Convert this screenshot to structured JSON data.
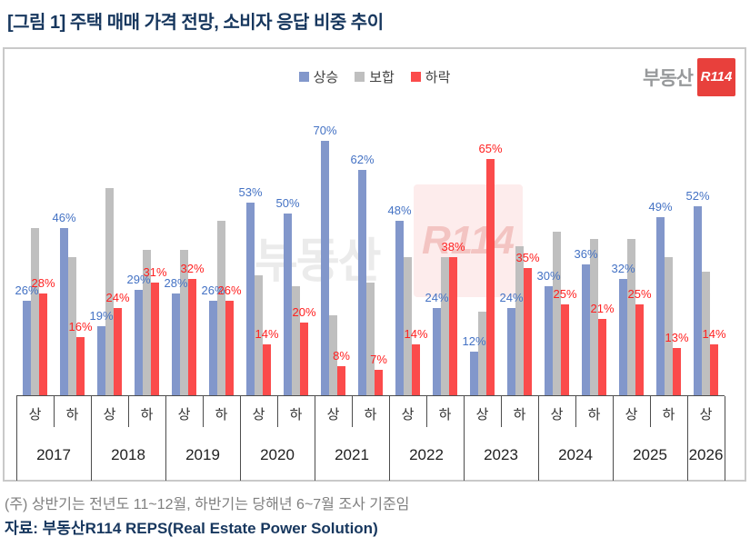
{
  "page": {
    "title": "[그림 1] 주택 매매 가격 전망, 소비자 응답 비중 추이",
    "note": "(주) 상반기는 전년도 11~12월, 하반기는 당해년 6~7월 조사 기준임",
    "source": "자료: 부동산R114 REPS(Real Estate Power Solution)"
  },
  "logo": {
    "prefix": "부동산",
    "mark": "R114"
  },
  "watermark": {
    "prefix": "부동산",
    "mark": "R114"
  },
  "colors": {
    "rise_bar": "#8297cb",
    "rise_label": "#4472c4",
    "flat_bar": "#bfbfbf",
    "fall_bar": "#fb4b4b",
    "fall_label": "#ff1f1f",
    "title_navy": "#17375e",
    "note_gray": "#7f7f7f",
    "axis_line": "#4d4d4d",
    "panel_border": "#c9c9c9",
    "logo_gray": "#97999b",
    "logo_red": "#e8403c"
  },
  "legend": {
    "items": [
      {
        "label": "상승"
      },
      {
        "label": "보합"
      },
      {
        "label": "하락"
      }
    ]
  },
  "chart_data": {
    "type": "bar",
    "title": "주택 매매 가격 전망, 소비자 응답 비중 추이",
    "unit": "%",
    "ylim": [
      0,
      75
    ],
    "grid": false,
    "legend_position": "top-center",
    "categories": [
      "2017 상",
      "2017 하",
      "2018 상",
      "2018 하",
      "2019 상",
      "2019 하",
      "2020 상",
      "2020 하",
      "2021 상",
      "2021 하",
      "2022 상",
      "2022 하",
      "2023 상",
      "2023 하",
      "2024 상",
      "2024 하",
      "2025 상",
      "2025 하",
      "2026 상"
    ],
    "x_axis": {
      "halves": [
        "상",
        "하",
        "상",
        "하",
        "상",
        "하",
        "상",
        "하",
        "상",
        "하",
        "상",
        "하",
        "상",
        "하",
        "상",
        "하",
        "상",
        "하",
        "상"
      ],
      "years": [
        {
          "label": "2017",
          "span": 2
        },
        {
          "label": "2018",
          "span": 2
        },
        {
          "label": "2019",
          "span": 2
        },
        {
          "label": "2020",
          "span": 2
        },
        {
          "label": "2021",
          "span": 2
        },
        {
          "label": "2022",
          "span": 2
        },
        {
          "label": "2023",
          "span": 2
        },
        {
          "label": "2024",
          "span": 2
        },
        {
          "label": "2025",
          "span": 2
        },
        {
          "label": "2026",
          "span": 1
        }
      ]
    },
    "series": [
      {
        "name": "상승",
        "values": [
          26,
          46,
          19,
          29,
          28,
          26,
          53,
          50,
          70,
          62,
          48,
          24,
          12,
          24,
          30,
          36,
          32,
          49,
          52
        ],
        "labels_shown": true
      },
      {
        "name": "보합",
        "values": [
          46,
          38,
          57,
          40,
          40,
          48,
          33,
          30,
          22,
          31,
          38,
          38,
          23,
          41,
          45,
          43,
          43,
          38,
          34
        ],
        "labels_shown": false,
        "values_estimated_from_bar_heights": true
      },
      {
        "name": "하락",
        "values": [
          28,
          16,
          24,
          31,
          32,
          26,
          14,
          20,
          8,
          7,
          14,
          38,
          65,
          35,
          25,
          21,
          25,
          13,
          14
        ],
        "labels_shown": true
      }
    ]
  }
}
